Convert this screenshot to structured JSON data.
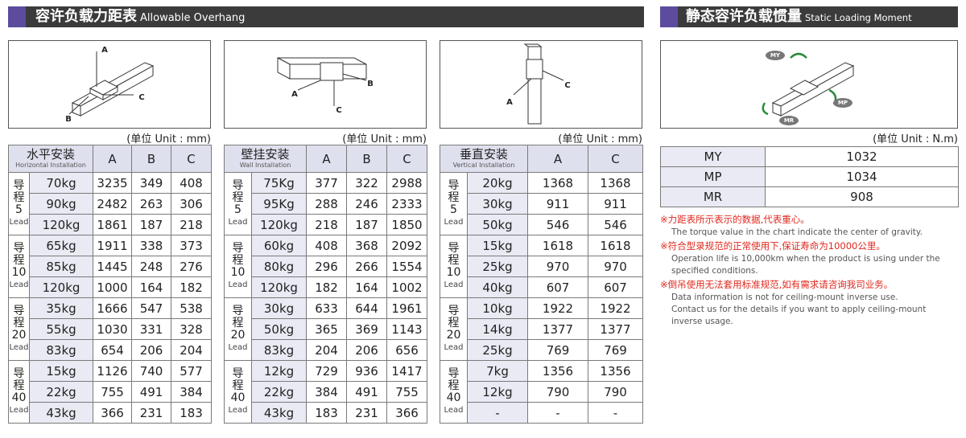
{
  "header_left": {
    "zh": "容许负载力距表",
    "en": "Allowable Overhang"
  },
  "header_right": {
    "zh": "静态容许负载惯量",
    "en": "Static Loading Moment"
  },
  "diagrams": [
    {
      "labels": [
        "A",
        "B",
        "C"
      ]
    },
    {
      "labels": [
        "A",
        "B",
        "C"
      ]
    },
    {
      "labels": [
        "A",
        "C"
      ]
    },
    {
      "labels": [
        "MY",
        "MP",
        "MR"
      ]
    }
  ],
  "tables": [
    {
      "unit": "(单位 Unit : mm)",
      "title_zh": "水平安装",
      "title_en": "Horizontal Installation",
      "columns": [
        "A",
        "B",
        "C"
      ],
      "groups": [
        {
          "lead_zh": "导程",
          "lead_num": 5,
          "lead_en": "Lead",
          "rows": [
            [
              "70kg",
              3235,
              349,
              408
            ],
            [
              "90kg",
              2482,
              263,
              306
            ],
            [
              "120kg",
              1861,
              187,
              218
            ]
          ]
        },
        {
          "lead_zh": "导程",
          "lead_num": 10,
          "lead_en": "Lead",
          "rows": [
            [
              "65kg",
              1911,
              338,
              373
            ],
            [
              "85kg",
              1445,
              248,
              276
            ],
            [
              "120kg",
              1000,
              164,
              182
            ]
          ]
        },
        {
          "lead_zh": "导程",
          "lead_num": 20,
          "lead_en": "Lead",
          "rows": [
            [
              "35kg",
              1666,
              547,
              538
            ],
            [
              "55kg",
              1030,
              331,
              328
            ],
            [
              "83kg",
              654,
              206,
              204
            ]
          ]
        },
        {
          "lead_zh": "导程",
          "lead_num": 40,
          "lead_en": "Lead",
          "rows": [
            [
              "15kg",
              1126,
              740,
              577
            ],
            [
              "22kg",
              755,
              491,
              384
            ],
            [
              "43kg",
              366,
              231,
              183
            ]
          ]
        }
      ]
    },
    {
      "unit": "(单位 Unit : mm)",
      "title_zh": "壁挂安装",
      "title_en": "Wall Installation",
      "columns": [
        "A",
        "B",
        "C"
      ],
      "groups": [
        {
          "lead_zh": "导程",
          "lead_num": 5,
          "lead_en": "Lead",
          "rows": [
            [
              "75Kg",
              377,
              322,
              2988
            ],
            [
              "95Kg",
              288,
              246,
              2333
            ],
            [
              "120kg",
              218,
              187,
              1850
            ]
          ]
        },
        {
          "lead_zh": "导程",
          "lead_num": 10,
          "lead_en": "Lead",
          "rows": [
            [
              "60kg",
              408,
              368,
              2092
            ],
            [
              "80kg",
              296,
              266,
              1554
            ],
            [
              "120kg",
              182,
              164,
              1002
            ]
          ]
        },
        {
          "lead_zh": "导程",
          "lead_num": 20,
          "lead_en": "Lead",
          "rows": [
            [
              "30kg",
              633,
              644,
              1961
            ],
            [
              "50kg",
              365,
              369,
              1143
            ],
            [
              "83kg",
              204,
              206,
              656
            ]
          ]
        },
        {
          "lead_zh": "导程",
          "lead_num": 40,
          "lead_en": "Lead",
          "rows": [
            [
              "12kg",
              729,
              936,
              1417
            ],
            [
              "22kg",
              384,
              491,
              755
            ],
            [
              "43kg",
              183,
              231,
              366
            ]
          ]
        }
      ]
    },
    {
      "unit": "(单位 Unit : mm)",
      "title_zh": "垂直安装",
      "title_en": "Vertical Installation",
      "columns": [
        "A",
        "C"
      ],
      "groups": [
        {
          "lead_zh": "导程",
          "lead_num": 5,
          "lead_en": "Lead",
          "rows": [
            [
              "20kg",
              1368,
              1368
            ],
            [
              "30kg",
              911,
              911
            ],
            [
              "50kg",
              546,
              546
            ]
          ]
        },
        {
          "lead_zh": "导程",
          "lead_num": 10,
          "lead_en": "Lead",
          "rows": [
            [
              "15kg",
              1618,
              1618
            ],
            [
              "25kg",
              970,
              970
            ],
            [
              "40kg",
              607,
              607
            ]
          ]
        },
        {
          "lead_zh": "导程",
          "lead_num": 20,
          "lead_en": "Lead",
          "rows": [
            [
              "10kg",
              1922,
              1922
            ],
            [
              "14kg",
              1377,
              1377
            ],
            [
              "25kg",
              769,
              769
            ]
          ]
        },
        {
          "lead_zh": "导程",
          "lead_num": 40,
          "lead_en": "Lead",
          "rows": [
            [
              "7kg",
              1356,
              1356
            ],
            [
              "12kg",
              790,
              790
            ],
            [
              "-",
              "-",
              "-"
            ]
          ]
        }
      ]
    }
  ],
  "moment": {
    "unit": "(单位 Unit : N.m)",
    "rows": [
      [
        "MY",
        1032
      ],
      [
        "MP",
        1034
      ],
      [
        "MR",
        908
      ]
    ]
  },
  "notes": [
    {
      "zh": "※力距表所示表示的数据,代表重心。",
      "en": [
        "The torque value in the chart indicate the center of gravity."
      ]
    },
    {
      "zh": "※符合型录规范的正常使用下,保证寿命为10000公里。",
      "en": [
        "Operation life is 10,000km when the product is using under the",
        "specified conditions."
      ]
    },
    {
      "zh": "※倒吊使用无法套用标准规范,如有需求请咨询我司业务。",
      "en": [
        "Data information is not for ceiling-mount inverse use.",
        "Contact us for the details if you want to apply ceiling-mount",
        "inverse usage."
      ]
    }
  ]
}
